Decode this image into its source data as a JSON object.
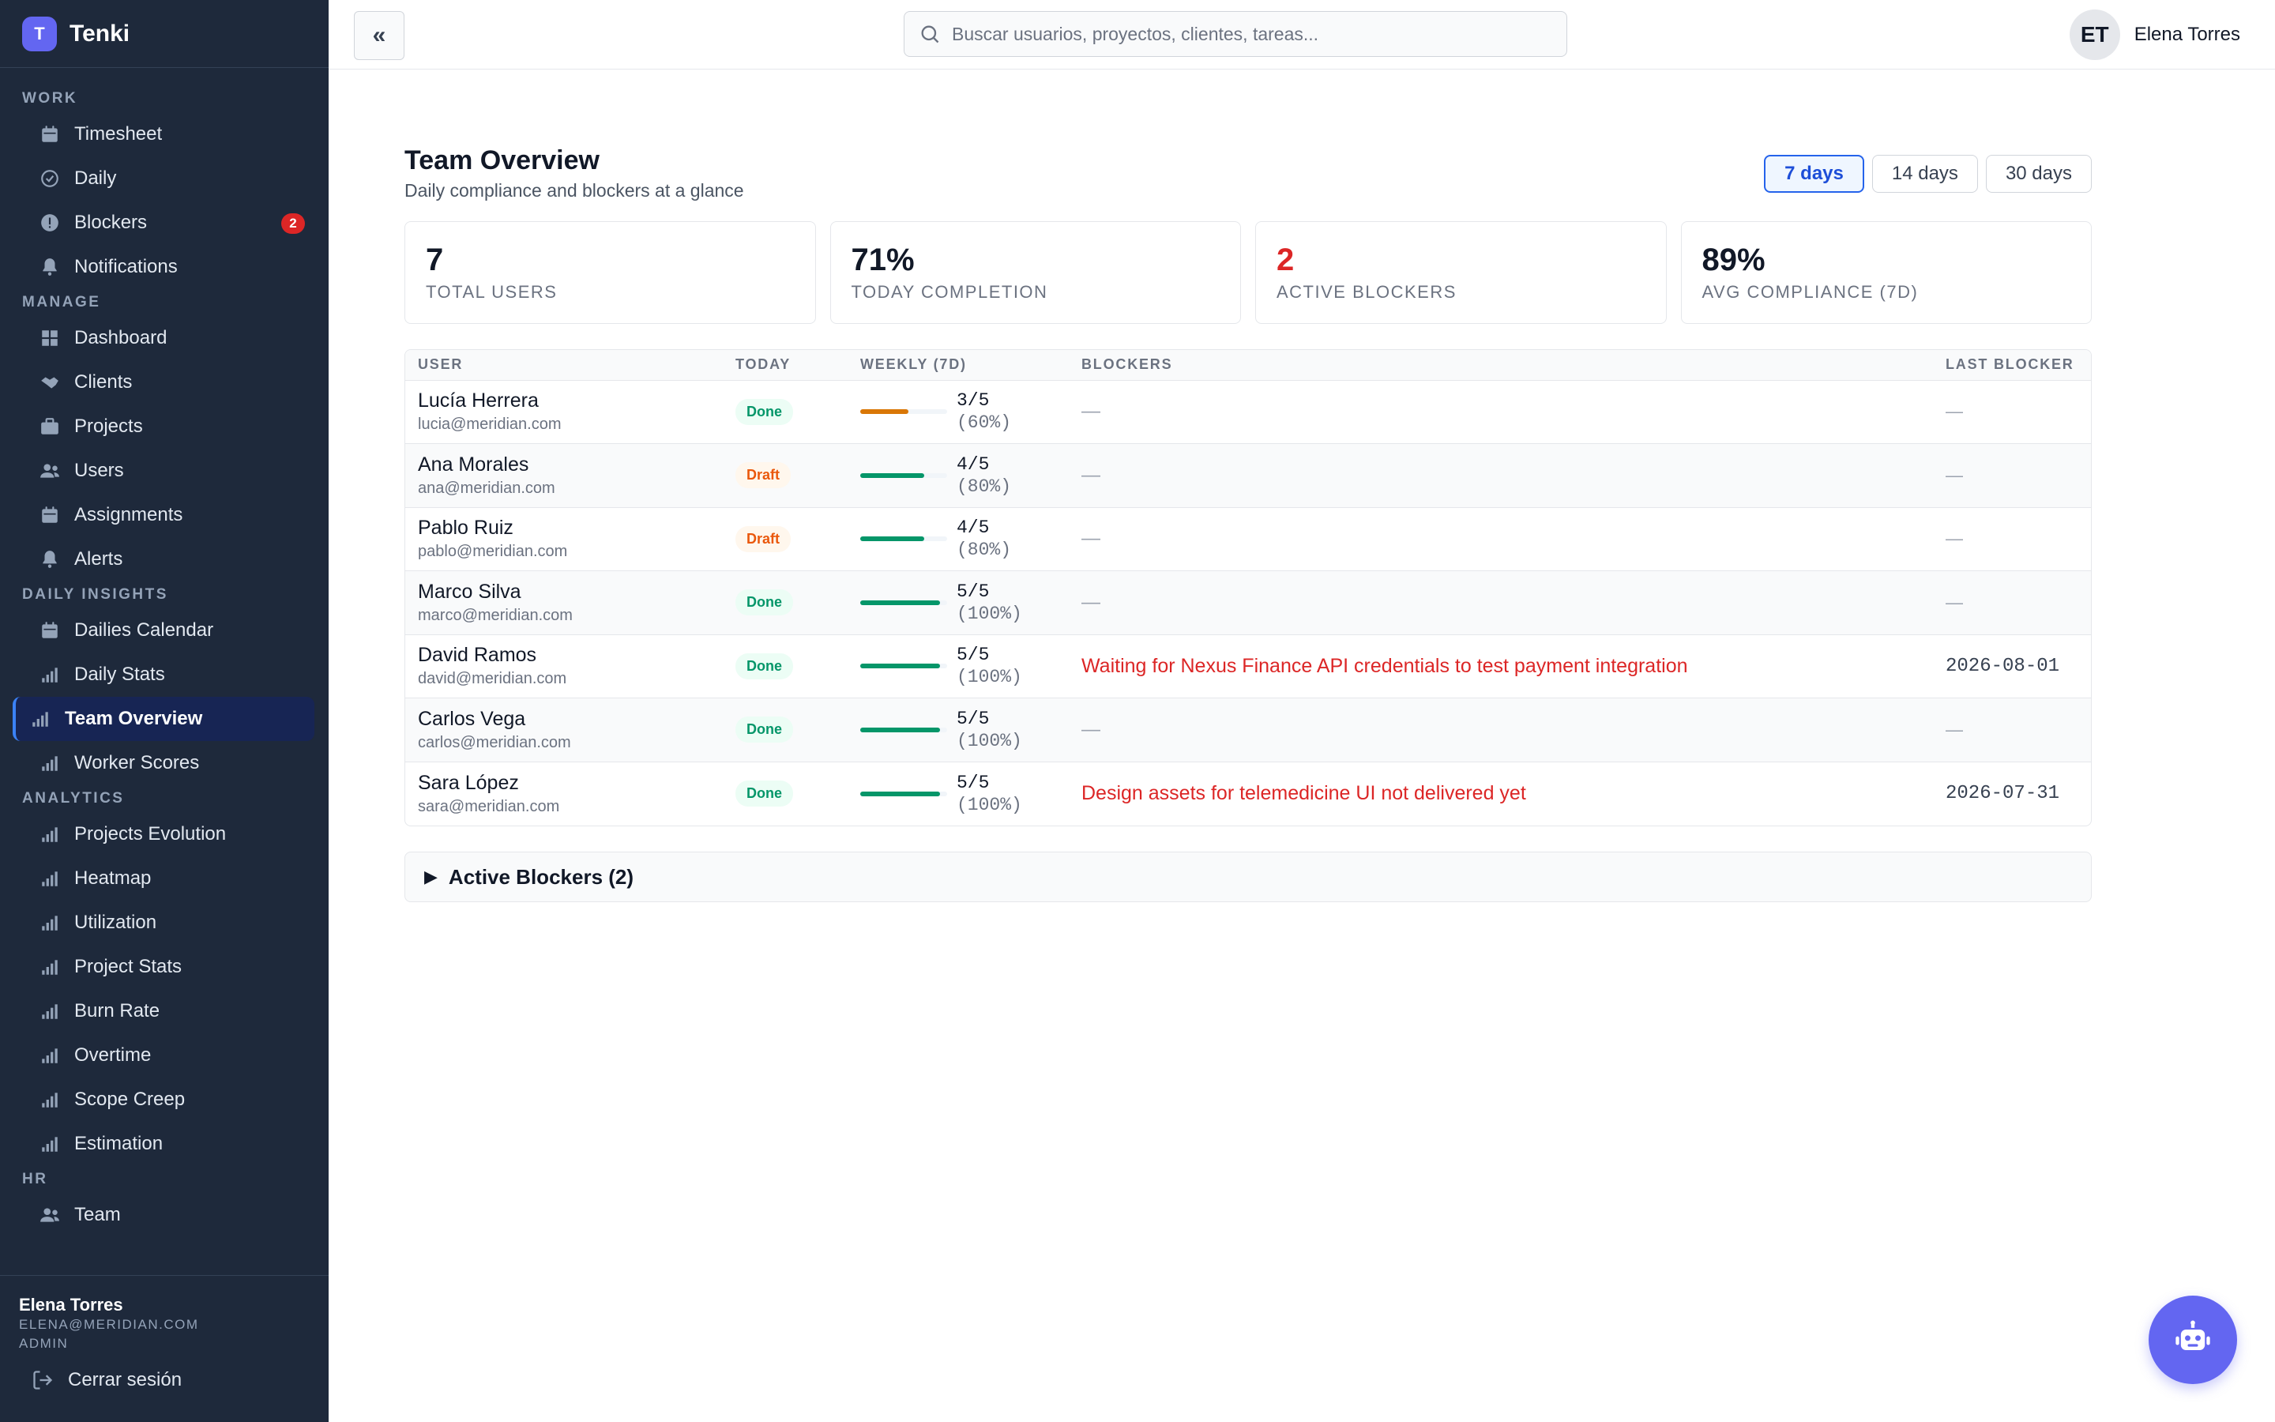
{
  "brand": {
    "logo_letter": "T",
    "name": "Tenki",
    "accent": "#6366f1"
  },
  "sidebar": {
    "sections": [
      {
        "label": "WORK",
        "items": [
          {
            "label": "Timesheet",
            "icon": "calendar-icon"
          },
          {
            "label": "Daily",
            "icon": "check-circle-icon"
          },
          {
            "label": "Blockers",
            "icon": "alert-circle-icon",
            "badge": "2"
          },
          {
            "label": "Notifications",
            "icon": "bell-icon"
          }
        ]
      },
      {
        "label": "MANAGE",
        "items": [
          {
            "label": "Dashboard",
            "icon": "grid-icon"
          },
          {
            "label": "Clients",
            "icon": "handshake-icon"
          },
          {
            "label": "Projects",
            "icon": "briefcase-icon"
          },
          {
            "label": "Users",
            "icon": "users-icon"
          },
          {
            "label": "Assignments",
            "icon": "calendar-icon"
          },
          {
            "label": "Alerts",
            "icon": "bell-icon"
          }
        ]
      },
      {
        "label": "DAILY INSIGHTS",
        "items": [
          {
            "label": "Dailies Calendar",
            "icon": "calendar-icon"
          },
          {
            "label": "Daily Stats",
            "icon": "bar-chart-icon"
          },
          {
            "label": "Team Overview",
            "icon": "bar-chart-icon",
            "active": true
          },
          {
            "label": "Worker Scores",
            "icon": "bar-chart-icon"
          }
        ]
      },
      {
        "label": "ANALYTICS",
        "items": [
          {
            "label": "Projects Evolution",
            "icon": "bar-chart-icon"
          },
          {
            "label": "Heatmap",
            "icon": "bar-chart-icon"
          },
          {
            "label": "Utilization",
            "icon": "bar-chart-icon"
          },
          {
            "label": "Project Stats",
            "icon": "bar-chart-icon"
          },
          {
            "label": "Burn Rate",
            "icon": "bar-chart-icon"
          },
          {
            "label": "Overtime",
            "icon": "bar-chart-icon"
          },
          {
            "label": "Scope Creep",
            "icon": "bar-chart-icon"
          },
          {
            "label": "Estimation",
            "icon": "bar-chart-icon"
          }
        ]
      },
      {
        "label": "HR",
        "items": [
          {
            "label": "Team",
            "icon": "users-icon"
          }
        ]
      }
    ],
    "footer": {
      "name": "Elena Torres",
      "email": "ELENA@MERIDIAN.COM",
      "role": "ADMIN",
      "logout_label": "Cerrar sesión"
    }
  },
  "topbar": {
    "collapse_glyph": "«",
    "search_placeholder": "Buscar usuarios, proyectos, clientes, tareas...",
    "user_initials": "ET",
    "user_name": "Elena Torres"
  },
  "page": {
    "title": "Team Overview",
    "subtitle": "Daily compliance and blockers at a glance",
    "ranges": [
      {
        "label": "7 days",
        "active": true
      },
      {
        "label": "14 days",
        "active": false
      },
      {
        "label": "30 days",
        "active": false
      }
    ]
  },
  "stats": [
    {
      "value": "7",
      "label": "TOTAL USERS",
      "color": "#111827"
    },
    {
      "value": "71%",
      "label": "TODAY COMPLETION",
      "color": "#111827"
    },
    {
      "value": "2",
      "label": "ACTIVE BLOCKERS",
      "color": "#dc2626"
    },
    {
      "value": "89%",
      "label": "AVG COMPLIANCE (7D)",
      "color": "#111827"
    }
  ],
  "table": {
    "headers": {
      "user": "USER",
      "today": "TODAY",
      "weekly": "WEEKLY (7D)",
      "blockers": "BLOCKERS",
      "last_blocker": "LAST BLOCKER"
    },
    "rows": [
      {
        "name": "Lucía Herrera",
        "email": "lucia@meridian.com",
        "today": "Done",
        "weekly": "3/5",
        "weekly_pct": "(60%)",
        "progress": 0.6,
        "bar_color": "#d97706",
        "blocker": "—",
        "last_blocker": "—"
      },
      {
        "name": "Ana Morales",
        "email": "ana@meridian.com",
        "today": "Draft",
        "weekly": "4/5",
        "weekly_pct": "(80%)",
        "progress": 0.8,
        "bar_color": "#059669",
        "blocker": "—",
        "last_blocker": "—"
      },
      {
        "name": "Pablo Ruiz",
        "email": "pablo@meridian.com",
        "today": "Draft",
        "weekly": "4/5",
        "weekly_pct": "(80%)",
        "progress": 0.8,
        "bar_color": "#059669",
        "blocker": "—",
        "last_blocker": "—"
      },
      {
        "name": "Marco Silva",
        "email": "marco@meridian.com",
        "today": "Done",
        "weekly": "5/5",
        "weekly_pct": "(100%)",
        "progress": 1.0,
        "bar_color": "#059669",
        "blocker": "—",
        "last_blocker": "—"
      },
      {
        "name": "David Ramos",
        "email": "david@meridian.com",
        "today": "Done",
        "weekly": "5/5",
        "weekly_pct": "(100%)",
        "progress": 1.0,
        "bar_color": "#059669",
        "blocker": "Waiting for Nexus Finance API credentials to test payment integration",
        "last_blocker": "2026-08-01"
      },
      {
        "name": "Carlos Vega",
        "email": "carlos@meridian.com",
        "today": "Done",
        "weekly": "5/5",
        "weekly_pct": "(100%)",
        "progress": 1.0,
        "bar_color": "#059669",
        "blocker": "—",
        "last_blocker": "—"
      },
      {
        "name": "Sara López",
        "email": "sara@meridian.com",
        "today": "Done",
        "weekly": "5/5",
        "weekly_pct": "(100%)",
        "progress": 1.0,
        "bar_color": "#059669",
        "blocker": "Design assets for telemedicine UI not delivered yet",
        "last_blocker": "2026-07-31"
      }
    ]
  },
  "active_blockers": {
    "glyph": "▶",
    "label": "Active Blockers (2)"
  },
  "fab": {
    "icon": "robot-icon"
  }
}
